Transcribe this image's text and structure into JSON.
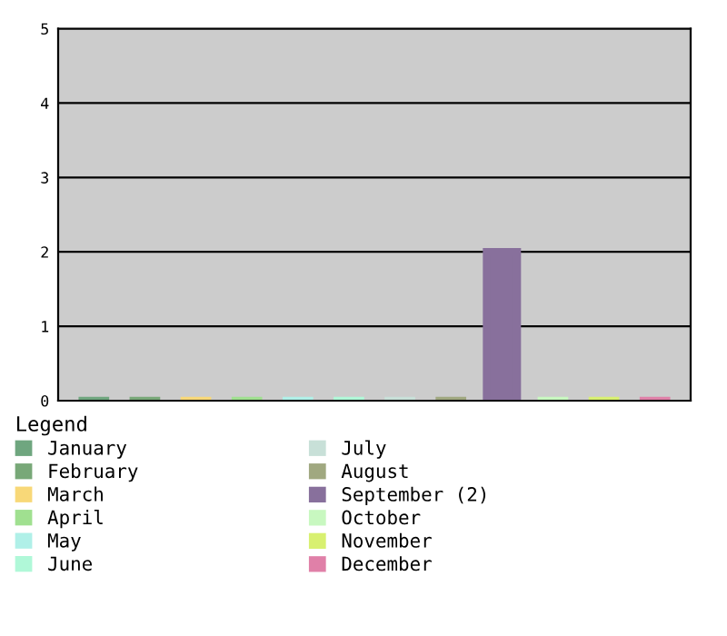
{
  "chart_data": {
    "type": "bar",
    "categories": [
      null,
      null,
      null,
      null,
      null,
      null,
      null,
      null,
      null,
      null,
      null,
      null
    ],
    "series": [
      {
        "name": "January",
        "color": "#6fa67f",
        "values": [
          0,
          null,
          null,
          null,
          null,
          null,
          null,
          null,
          null,
          null,
          null,
          null
        ]
      },
      {
        "name": "February",
        "color": "#78a878",
        "values": [
          null,
          0,
          null,
          null,
          null,
          null,
          null,
          null,
          null,
          null,
          null,
          null
        ]
      },
      {
        "name": "March",
        "color": "#f8d878",
        "values": [
          null,
          null,
          0,
          null,
          null,
          null,
          null,
          null,
          null,
          null,
          null,
          null
        ]
      },
      {
        "name": "April",
        "color": "#a0e090",
        "values": [
          null,
          null,
          null,
          0,
          null,
          null,
          null,
          null,
          null,
          null,
          null,
          null
        ]
      },
      {
        "name": "May",
        "color": "#b0f0e8",
        "values": [
          null,
          null,
          null,
          null,
          0,
          null,
          null,
          null,
          null,
          null,
          null,
          null
        ]
      },
      {
        "name": "June",
        "color": "#b0f8d8",
        "values": [
          null,
          null,
          null,
          null,
          null,
          0,
          null,
          null,
          null,
          null,
          null,
          null
        ]
      },
      {
        "name": "July",
        "color": "#c8e0d8",
        "values": [
          null,
          null,
          null,
          null,
          null,
          null,
          0,
          null,
          null,
          null,
          null,
          null
        ]
      },
      {
        "name": "August",
        "color": "#a0a880",
        "values": [
          null,
          null,
          null,
          null,
          null,
          null,
          null,
          0,
          null,
          null,
          null,
          null
        ]
      },
      {
        "name": "September (2)",
        "color": "#88709c",
        "values": [
          null,
          null,
          null,
          null,
          null,
          null,
          null,
          null,
          2,
          null,
          null,
          null
        ]
      },
      {
        "name": "October",
        "color": "#c8f8c0",
        "values": [
          null,
          null,
          null,
          null,
          null,
          null,
          null,
          null,
          null,
          0,
          null,
          null
        ]
      },
      {
        "name": "November",
        "color": "#d8f070",
        "values": [
          null,
          null,
          null,
          null,
          null,
          null,
          null,
          null,
          null,
          null,
          0,
          null
        ]
      },
      {
        "name": "December",
        "color": "#e080a8",
        "values": [
          null,
          null,
          null,
          null,
          null,
          null,
          null,
          null,
          null,
          null,
          null,
          0
        ]
      }
    ],
    "ylim": [
      0,
      5
    ],
    "yticks": [
      0,
      1,
      2,
      3,
      4,
      5
    ],
    "grid": "y",
    "legend": "bottom",
    "legend_title": "Legend"
  }
}
